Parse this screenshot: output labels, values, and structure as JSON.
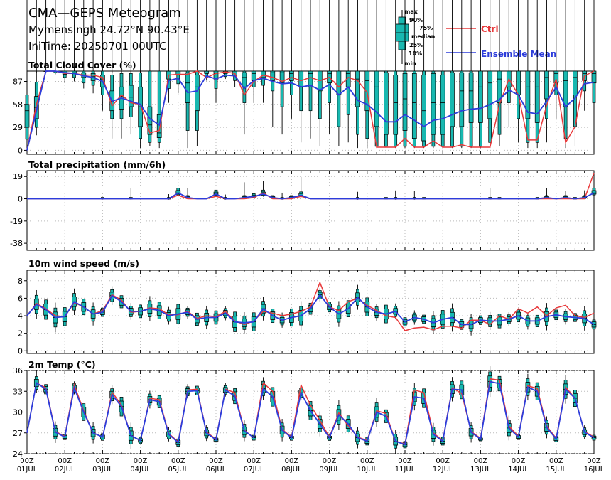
{
  "header": {
    "title": "CMA—GEPS Meteogram",
    "location": "Mymensingh 24.72°N 90.43°E",
    "init_time": "IniTime: 20250701 00UTC"
  },
  "legend": {
    "box_labels": [
      "max",
      "90%",
      "75%",
      "median",
      "25%",
      "10%",
      "min"
    ],
    "ctrl_label": "Ctrl",
    "mean_label": "Ensemble Mean",
    "colors": {
      "ctrl": "#e8383a",
      "mean": "#2d3ddb",
      "box": "#18b8b0",
      "median": "#1f7ccf"
    }
  },
  "x_axis": {
    "day_labels": [
      "01JUL",
      "02JUL",
      "03JUL",
      "04JUL",
      "05JUL",
      "06JUL",
      "07JUL",
      "08JUL",
      "09JUL",
      "10JUL",
      "11JUL",
      "12JUL",
      "13JUL",
      "14JUL",
      "15JUL",
      "16JUL"
    ],
    "hour_label": "00Z"
  },
  "chart_data": [
    {
      "type": "box",
      "title": "Total Cloud Cover (%)",
      "ylim": [
        -5,
        100
      ],
      "yticks": [
        0,
        29,
        58,
        87
      ],
      "step_hours": 6,
      "ctrl": [
        0,
        58,
        100,
        100,
        97,
        97,
        95,
        95,
        92,
        56,
        70,
        60,
        58,
        22,
        25,
        95,
        96,
        96,
        100,
        92,
        97,
        99,
        97,
        70,
        87,
        95,
        92,
        87,
        92,
        88,
        92,
        88,
        92,
        80,
        92,
        88,
        73,
        4,
        4,
        4,
        15,
        4,
        4,
        12,
        4,
        4,
        7,
        4,
        4,
        4,
        58,
        90,
        70,
        13,
        13,
        57,
        90,
        10,
        30,
        94,
        100
      ],
      "mean": [
        0,
        50,
        100,
        100,
        98,
        97,
        94,
        92,
        87,
        62,
        66,
        62,
        58,
        40,
        32,
        88,
        91,
        73,
        75,
        94,
        90,
        95,
        94,
        78,
        88,
        91,
        87,
        84,
        85,
        80,
        82,
        76,
        83,
        70,
        80,
        63,
        58,
        48,
        36,
        36,
        45,
        38,
        30,
        38,
        40,
        45,
        50,
        52,
        53,
        58,
        64,
        76,
        70,
        48,
        46,
        62,
        80,
        55,
        66,
        84,
        86
      ],
      "boxes": [
        [
          0,
          3,
          14,
          29,
          50,
          58,
          70
        ],
        [
          1,
          19,
          29,
          40,
          54,
          68,
          86
        ],
        [
          2,
          100,
          100,
          100,
          100,
          100,
          100
        ],
        [
          3,
          96,
          98,
          100,
          100,
          100,
          100
        ],
        [
          4,
          85,
          92,
          96,
          98,
          100,
          100
        ],
        [
          5,
          87,
          92,
          97,
          98,
          100,
          100
        ],
        [
          6,
          78,
          85,
          92,
          95,
          98,
          100
        ],
        [
          7,
          72,
          82,
          88,
          93,
          97,
          100
        ],
        [
          8,
          50,
          70,
          80,
          90,
          95,
          100
        ],
        [
          9,
          15,
          40,
          50,
          62,
          75,
          95
        ],
        [
          10,
          15,
          40,
          52,
          68,
          80,
          97
        ],
        [
          11,
          20,
          42,
          55,
          67,
          82,
          97
        ],
        [
          12,
          3,
          15,
          30,
          55,
          80,
          98
        ],
        [
          13,
          5,
          10,
          20,
          32,
          55,
          100
        ],
        [
          14,
          3,
          10,
          16,
          22,
          45,
          100
        ],
        [
          15,
          60,
          78,
          90,
          100,
          100,
          100
        ],
        [
          16,
          72,
          84,
          95,
          100,
          100,
          100
        ],
        [
          17,
          3,
          25,
          60,
          85,
          98,
          100
        ],
        [
          18,
          5,
          25,
          50,
          80,
          95,
          100
        ],
        [
          19,
          88,
          92,
          97,
          100,
          100,
          100
        ],
        [
          20,
          60,
          78,
          90,
          97,
          100,
          100
        ],
        [
          21,
          90,
          93,
          97,
          100,
          100,
          100
        ],
        [
          22,
          80,
          88,
          95,
          100,
          100,
          100
        ],
        [
          23,
          20,
          60,
          80,
          92,
          98,
          100
        ],
        [
          24,
          60,
          80,
          88,
          97,
          100,
          100
        ],
        [
          25,
          60,
          82,
          92,
          100,
          100,
          100
        ],
        [
          26,
          30,
          75,
          88,
          98,
          100,
          100
        ],
        [
          27,
          20,
          55,
          85,
          98,
          100,
          100
        ],
        [
          28,
          40,
          70,
          88,
          97,
          100,
          100
        ],
        [
          29,
          10,
          50,
          80,
          95,
          100,
          100
        ],
        [
          30,
          15,
          50,
          80,
          97,
          100,
          100
        ],
        [
          31,
          5,
          40,
          75,
          95,
          100,
          100
        ],
        [
          32,
          20,
          60,
          85,
          97,
          100,
          100
        ],
        [
          33,
          5,
          30,
          70,
          95,
          100,
          100
        ],
        [
          34,
          10,
          45,
          80,
          97,
          100,
          100
        ],
        [
          35,
          3,
          20,
          55,
          90,
          100,
          100
        ],
        [
          36,
          3,
          15,
          50,
          88,
          100,
          100
        ],
        [
          37,
          3,
          5,
          30,
          80,
          100,
          100
        ],
        [
          38,
          3,
          5,
          20,
          70,
          98,
          100
        ],
        [
          39,
          3,
          5,
          20,
          60,
          95,
          100
        ],
        [
          40,
          3,
          5,
          25,
          65,
          97,
          100
        ],
        [
          41,
          3,
          5,
          15,
          60,
          97,
          100
        ],
        [
          42,
          3,
          5,
          12,
          50,
          95,
          100
        ],
        [
          43,
          3,
          5,
          20,
          60,
          97,
          100
        ],
        [
          44,
          3,
          5,
          20,
          60,
          95,
          100
        ],
        [
          45,
          3,
          5,
          30,
          70,
          98,
          100
        ],
        [
          46,
          3,
          5,
          30,
          75,
          98,
          100
        ],
        [
          47,
          3,
          5,
          35,
          75,
          98,
          100
        ],
        [
          48,
          3,
          5,
          35,
          80,
          100,
          100
        ],
        [
          49,
          3,
          10,
          40,
          85,
          100,
          100
        ],
        [
          50,
          5,
          20,
          60,
          90,
          100,
          100
        ],
        [
          51,
          30,
          60,
          80,
          95,
          100,
          100
        ],
        [
          52,
          10,
          40,
          70,
          95,
          100,
          100
        ],
        [
          53,
          3,
          10,
          40,
          80,
          100,
          100
        ],
        [
          54,
          3,
          10,
          35,
          80,
          100,
          100
        ],
        [
          55,
          10,
          40,
          65,
          92,
          100,
          100
        ],
        [
          56,
          40,
          70,
          85,
          97,
          100,
          100
        ],
        [
          57,
          3,
          15,
          55,
          88,
          100,
          100
        ],
        [
          58,
          5,
          30,
          70,
          92,
          100,
          100
        ],
        [
          59,
          50,
          75,
          88,
          97,
          100,
          100
        ],
        [
          60,
          30,
          60,
          85,
          97,
          100,
          100
        ]
      ]
    },
    {
      "type": "box",
      "title": "Total precipitation (mm/6h)",
      "ylim": [
        -44,
        24
      ],
      "yticks": [
        -38,
        -19,
        0,
        19
      ],
      "step_hours": 6,
      "ctrl": [
        0,
        0,
        0,
        0,
        0,
        0,
        0,
        0,
        0,
        0,
        0,
        0,
        0,
        0,
        0,
        0,
        3,
        0,
        0,
        0,
        2,
        0,
        0,
        0,
        1,
        5,
        0,
        0,
        0,
        2,
        0,
        0,
        0,
        0,
        0,
        0,
        0,
        0,
        0,
        0,
        0,
        0,
        0,
        0,
        0,
        0,
        0,
        0,
        0,
        0,
        0,
        0,
        0,
        0,
        0,
        0,
        0,
        0,
        0,
        0,
        22
      ],
      "mean": [
        0,
        0,
        0,
        0,
        0,
        0,
        0,
        0,
        0,
        0,
        0,
        0,
        0,
        0,
        0,
        0,
        5,
        1,
        0,
        0,
        4,
        0,
        0,
        1,
        2,
        4,
        1,
        0,
        1,
        3,
        0,
        0,
        0,
        0,
        0,
        0,
        0,
        0,
        0,
        0,
        0,
        0,
        0,
        0,
        0,
        0,
        0,
        0,
        0,
        0,
        0,
        0,
        0,
        0,
        0,
        1,
        0,
        1,
        0,
        1,
        5
      ]
    },
    {
      "type": "box",
      "title": "10m wind speed (m/s)",
      "ylim": [
        -0.3,
        9.2
      ],
      "yticks": [
        0,
        2,
        4,
        6,
        8
      ],
      "step_hours": 6,
      "ctrl": [
        4.0,
        5.4,
        4.8,
        4.0,
        3.9,
        5.5,
        5.0,
        4.2,
        4.6,
        6.4,
        5.8,
        4.4,
        4.5,
        4.9,
        4.8,
        4.1,
        4.1,
        4.5,
        3.7,
        4.0,
        3.9,
        4.5,
        3.4,
        3.0,
        3.4,
        4.5,
        4.3,
        4.0,
        4.2,
        4.5,
        5.0,
        7.8,
        5.0,
        4.6,
        5.6,
        6.0,
        5.2,
        4.6,
        4.0,
        3.8,
        2.3,
        2.6,
        2.7,
        2.4,
        2.8,
        2.8,
        2.6,
        3.5,
        3.5,
        3.0,
        4.0,
        3.6,
        4.8,
        4.3,
        5.0,
        4.0,
        4.9,
        5.2,
        4.0,
        3.8,
        4.3
      ],
      "mean": [
        4.0,
        5.3,
        4.7,
        3.8,
        3.9,
        5.6,
        5.0,
        4.2,
        4.4,
        6.3,
        5.6,
        4.5,
        4.5,
        4.8,
        4.6,
        4.0,
        4.2,
        4.4,
        3.6,
        3.8,
        3.8,
        4.3,
        3.3,
        3.2,
        3.3,
        4.8,
        4.0,
        3.5,
        3.8,
        4.0,
        4.8,
        6.4,
        5.0,
        4.2,
        4.8,
        6.1,
        5.0,
        4.4,
        4.2,
        4.5,
        3.3,
        3.8,
        3.6,
        3.2,
        3.6,
        3.8,
        3.0,
        3.0,
        3.5,
        3.4,
        3.4,
        3.6,
        4.0,
        3.4,
        3.4,
        3.9,
        4.1,
        3.9,
        3.8,
        3.7,
        3.0
      ]
    },
    {
      "type": "box",
      "title": "2m Temp (°C)",
      "ylim": [
        24,
        36
      ],
      "yticks": [
        24,
        27,
        30,
        33,
        36
      ],
      "step_hours": 6,
      "ctrl": [
        27.0,
        34.2,
        33.5,
        27.2,
        26.5,
        33.9,
        30.2,
        27.0,
        26.4,
        32.9,
        31.0,
        26.6,
        25.9,
        32.0,
        31.8,
        26.9,
        25.7,
        33.2,
        33.3,
        27.1,
        26.1,
        33.3,
        32.8,
        27.4,
        26.3,
        34.2,
        33.0,
        27.5,
        26.4,
        33.9,
        31.0,
        28.8,
        26.4,
        29.9,
        28.0,
        26.4,
        25.9,
        30.2,
        29.8,
        25.8,
        25.4,
        33.2,
        32.8,
        27.0,
        25.9,
        33.5,
        32.7,
        27.2,
        26.2,
        34.8,
        34.6,
        28.0,
        26.5,
        33.8,
        33.4,
        28.0,
        26.2,
        33.6,
        32.0,
        27.2,
        26.4
      ],
      "mean": [
        27.0,
        34.2,
        33.3,
        27.1,
        26.4,
        33.5,
        30.0,
        27.0,
        26.4,
        32.5,
        30.8,
        26.6,
        25.9,
        31.8,
        31.5,
        26.8,
        25.6,
        33.0,
        33.1,
        27.0,
        26.0,
        33.2,
        32.3,
        27.3,
        26.3,
        33.4,
        32.2,
        27.4,
        26.3,
        32.8,
        30.2,
        28.3,
        26.3,
        29.6,
        28.3,
        26.3,
        25.8,
        30.0,
        29.4,
        25.8,
        25.3,
        32.2,
        32.0,
        26.8,
        25.8,
        33.3,
        33.2,
        27.1,
        26.1,
        34.4,
        34.1,
        27.7,
        26.4,
        33.6,
        33.0,
        27.8,
        26.1,
        33.3,
        32.0,
        27.1,
        26.3
      ]
    }
  ]
}
